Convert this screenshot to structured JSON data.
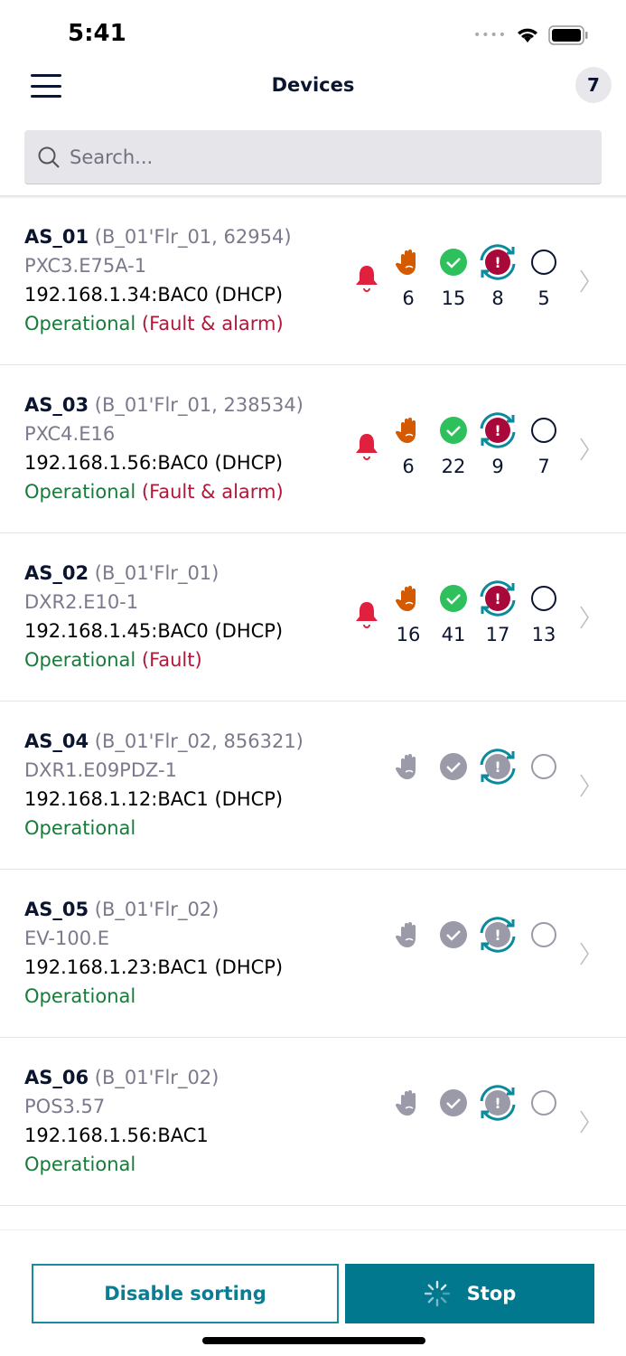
{
  "status": {
    "time": "5:41"
  },
  "header": {
    "title": "Devices",
    "count": "7"
  },
  "search": {
    "placeholder": "Search..."
  },
  "colors": {
    "accent": "#02788f",
    "operational": "#1a7a3c",
    "fault": "#b0183a",
    "alarm": "#e0203c",
    "manual": "#d45a00",
    "ok": "#2ec05c"
  },
  "devices": [
    {
      "name": "AS_01",
      "location": "(B_01'Flr_01, 62954)",
      "model": "PXC3.E75A-1",
      "address": "192.168.1.34:BAC0 (DHCP)",
      "state": "Operational",
      "fault": "(Fault & alarm)",
      "active": true,
      "counts": [
        "6",
        "15",
        "8",
        "5"
      ]
    },
    {
      "name": "AS_03",
      "location": "(B_01'Flr_01, 238534)",
      "model": "PXC4.E16",
      "address": "192.168.1.56:BAC0 (DHCP)",
      "state": "Operational",
      "fault": "(Fault & alarm)",
      "active": true,
      "counts": [
        "6",
        "22",
        "9",
        "7"
      ]
    },
    {
      "name": "AS_02",
      "location": "(B_01'Flr_01)",
      "model": "DXR2.E10-1",
      "address": "192.168.1.45:BAC0 (DHCP)",
      "state": "Operational",
      "fault": "(Fault)",
      "active": true,
      "counts": [
        "16",
        "41",
        "17",
        "13"
      ]
    },
    {
      "name": "AS_04",
      "location": "(B_01'Flr_02, 856321)",
      "model": "DXR1.E09PDZ-1",
      "address": "192.168.1.12:BAC1 (DHCP)",
      "state": "Operational",
      "fault": "",
      "active": false,
      "counts": []
    },
    {
      "name": "AS_05",
      "location": "(B_01'Flr_02)",
      "model": "EV-100.E",
      "address": "192.168.1.23:BAC1 (DHCP)",
      "state": "Operational",
      "fault": "",
      "active": false,
      "counts": []
    },
    {
      "name": "AS_06",
      "location": "(B_01'Flr_02)",
      "model": "POS3.57",
      "address": "192.168.1.56:BAC1",
      "state": "Operational",
      "fault": "",
      "active": false,
      "counts": []
    }
  ],
  "footer": {
    "disable_sorting": "Disable sorting",
    "stop": "Stop"
  }
}
